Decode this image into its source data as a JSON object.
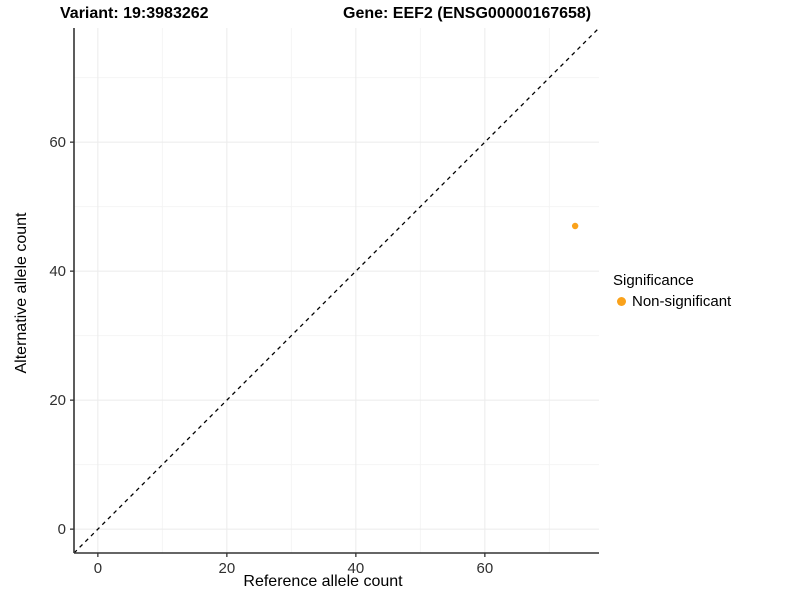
{
  "chart_data": {
    "type": "scatter",
    "titles": {
      "left": "Variant: 19:3983262",
      "right": "Gene: EEF2 (ENSG00000167658)"
    },
    "xlabel": "Reference allele count",
    "ylabel": "Alternative allele count",
    "xlim": [
      -3.7,
      77.7
    ],
    "ylim": [
      -3.7,
      77.7
    ],
    "x_major_ticks": [
      0,
      20,
      40,
      60
    ],
    "y_major_ticks": [
      0,
      20,
      40,
      60
    ],
    "x_minor_gridlines": [
      10,
      30,
      50,
      70
    ],
    "y_minor_gridlines": [
      10,
      30,
      50,
      70
    ],
    "grid": {
      "on": true,
      "major_color": "#EBEBEB",
      "minor_color": "#F4F4F4"
    },
    "identity_line": {
      "equation": "y = x",
      "style": "dashed",
      "color": "#000000"
    },
    "series": [
      {
        "name": "Non-significant",
        "color": "#FAA21B",
        "points": [
          {
            "x": 74,
            "y": 47
          }
        ]
      }
    ],
    "legend": {
      "title": "Significance",
      "position": "right",
      "items": [
        {
          "label": "Non-significant",
          "color": "#FAA21B"
        }
      ]
    },
    "axis_line_color": "#333333",
    "tick_color": "#333333",
    "tick_label_color": "#303030",
    "background_color": "#FFFFFF"
  }
}
